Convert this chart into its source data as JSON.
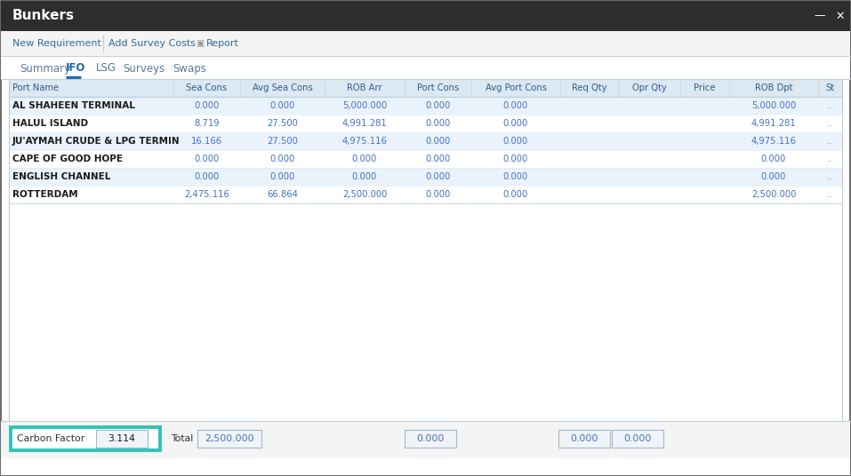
{
  "title": "Bunkers",
  "title_bg": "#2d2d2d",
  "title_color": "#ffffff",
  "toolbar_bg": "#f4f4f4",
  "toolbar_items": [
    "New Requirement",
    "Add Survey Costs",
    "Report"
  ],
  "tabs": [
    "Summary",
    "IFO",
    "LSG",
    "Surveys",
    "Swaps"
  ],
  "active_tab": "IFO",
  "tab_underline_color": "#1e6fa8",
  "header_bg": "#dce8f2",
  "header_text_color": "#2c5f8a",
  "header_cols": [
    "Port Name",
    "Sea Cons",
    "Avg Sea Cons",
    "ROB Arr",
    "Port Cons",
    "Avg Port Cons",
    "Req Qty",
    "Opr Qty",
    "Price",
    "ROB Dpt",
    "St"
  ],
  "row_bg_odd": "#ffffff",
  "row_bg_even": "#eaf3fb",
  "row_text_color_name": "#1a1a1a",
  "row_text_color_num": "#4472c4",
  "rows": [
    [
      "AL SHAHEEN TERMINAL",
      "0.000",
      "0.000",
      "5,000.000",
      "0.000",
      "0.000",
      "",
      "",
      "",
      "5,000.000",
      ".."
    ],
    [
      "HALUL ISLAND",
      "8.719",
      "27.500",
      "4,991.281",
      "0.000",
      "0.000",
      "",
      "",
      "",
      "4,991.281",
      ".."
    ],
    [
      "JU'AYMAH CRUDE & LPG TERMIN",
      "16.166",
      "27.500",
      "4,975.116",
      "0.000",
      "0.000",
      "",
      "",
      "",
      "4,975.116",
      ".."
    ],
    [
      "CAPE OF GOOD HOPE",
      "0.000",
      "0.000",
      "0.000",
      "0.000",
      "0.000",
      "",
      "",
      "",
      "0.000",
      ".."
    ],
    [
      "ENGLISH CHANNEL",
      "0.000",
      "0.000",
      "0.000",
      "0.000",
      "0.000",
      "",
      "",
      "",
      "0.000",
      ".."
    ],
    [
      "ROTTERDAM",
      "2,475.116",
      "66.864",
      "2,500.000",
      "0.000",
      "0.000",
      "",
      "",
      "",
      "2,500.000",
      ".."
    ]
  ],
  "footer_bg": "#f4f4f4",
  "carbon_factor_label": "Carbon Factor",
  "carbon_factor_value": "3.114",
  "carbon_factor_box_color": "#2ec4b6",
  "total_label": "Total",
  "total_value": "2,500.000",
  "footer_values": [
    "0.000",
    "0.000",
    "0.000"
  ],
  "table_border_color": "#b8ccda",
  "fig_bg": "#d4d4d4",
  "content_bg": "#ffffff",
  "window_border": "#555555"
}
